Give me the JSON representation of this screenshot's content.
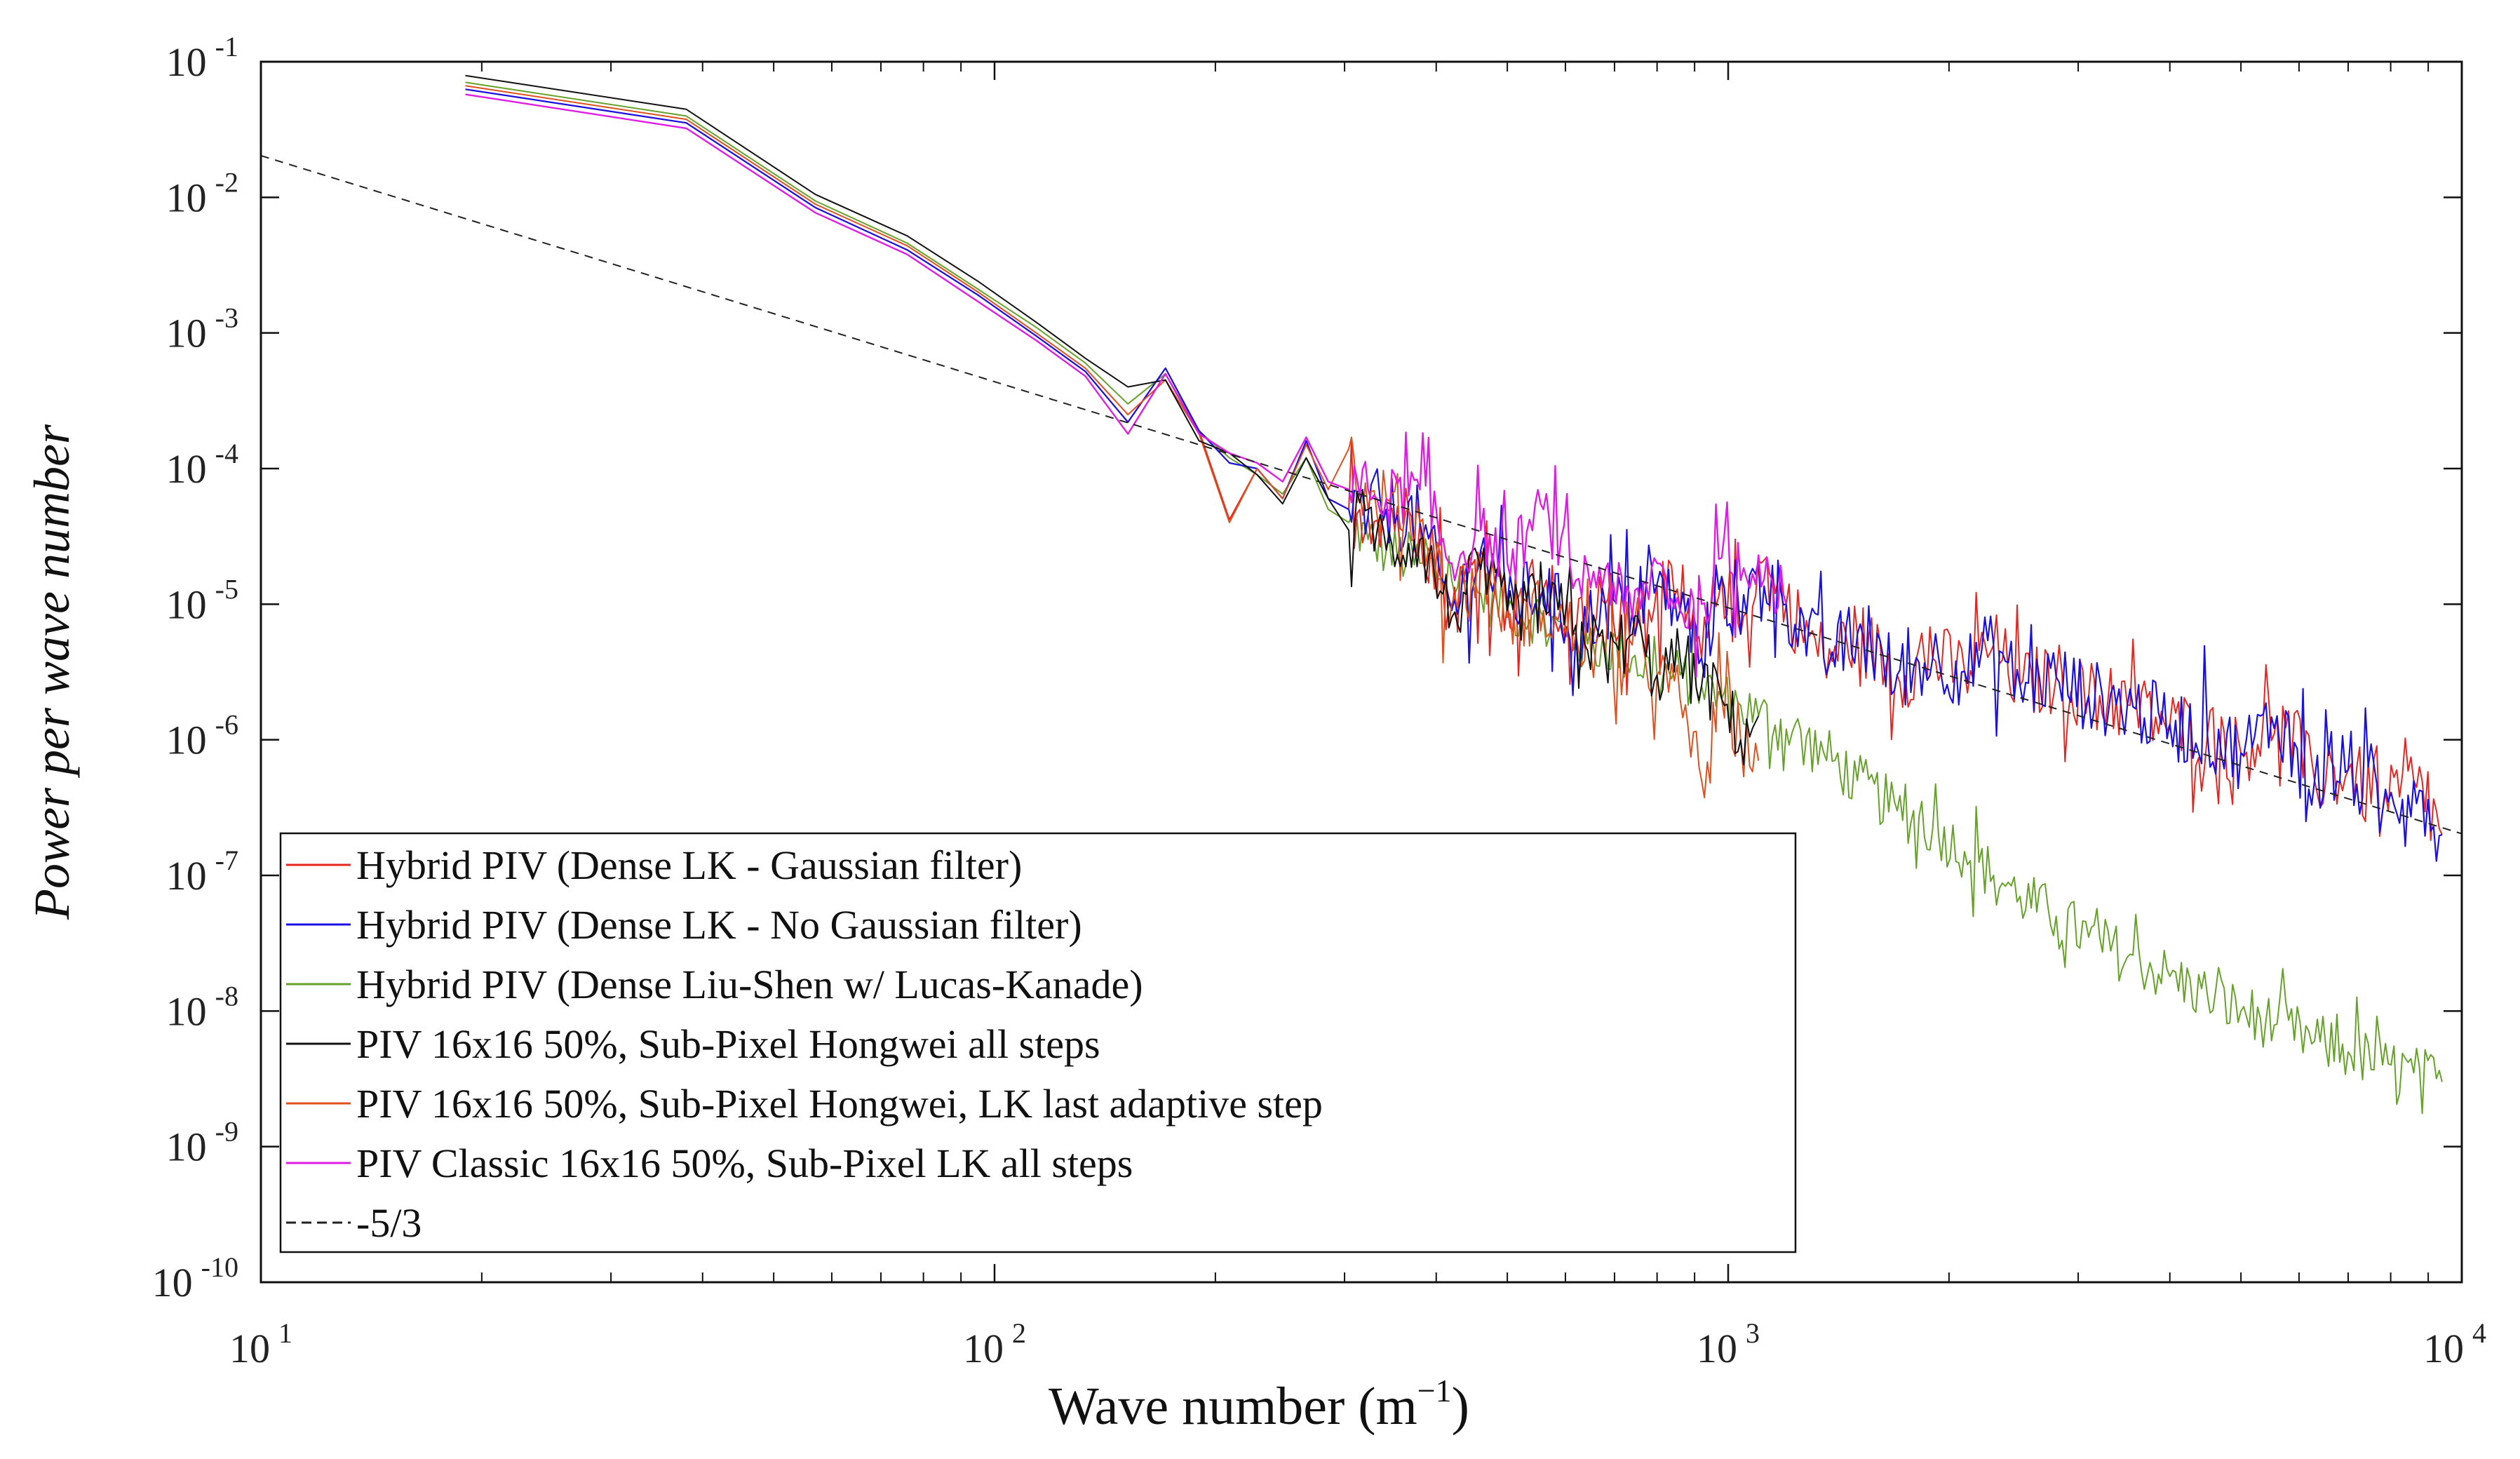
{
  "chart_data": {
    "type": "line",
    "scale": {
      "x": "log",
      "y": "log"
    },
    "xlim": [
      10,
      10000
    ],
    "ylim": [
      1e-10,
      0.1
    ],
    "xlabel": "Wave number (m",
    "xlabel_sup": "−1",
    "xlabel_end": ")",
    "ylabel": "Power per wave number",
    "x_ticks": [
      {
        "value": 10,
        "base": "10",
        "exp": "1"
      },
      {
        "value": 100,
        "base": "10",
        "exp": "2"
      },
      {
        "value": 1000,
        "base": "10",
        "exp": "3"
      },
      {
        "value": 10000,
        "base": "10",
        "exp": "4"
      }
    ],
    "y_ticks": [
      {
        "value": 0.1,
        "base": "10",
        "exp": "-1"
      },
      {
        "value": 0.01,
        "base": "10",
        "exp": "-2"
      },
      {
        "value": 0.001,
        "base": "10",
        "exp": "-3"
      },
      {
        "value": 0.0001,
        "base": "10",
        "exp": "-4"
      },
      {
        "value": 1e-05,
        "base": "10",
        "exp": "-5"
      },
      {
        "value": 1e-06,
        "base": "10",
        "exp": "-6"
      },
      {
        "value": 1e-07,
        "base": "10",
        "exp": "-7"
      },
      {
        "value": 1e-08,
        "base": "10",
        "exp": "-8"
      },
      {
        "value": 1e-09,
        "base": "10",
        "exp": "-9"
      },
      {
        "value": 1e-10,
        "base": "10",
        "exp": "-10"
      }
    ],
    "legend_position": "bottom-left",
    "series": [
      {
        "name": "Hybrid PIV (Dense LK - Gaussian filter)",
        "color": "#e8241e",
        "dash": false,
        "width": 2,
        "x": [
          19,
          38,
          57,
          76,
          95,
          114,
          133,
          152,
          171,
          190,
          209,
          228,
          247,
          266,
          285,
          304,
          323,
          342,
          380,
          420,
          460,
          500,
          560,
          620,
          680,
          740,
          800,
          860,
          920,
          980,
          1040,
          1100,
          1200,
          1350,
          1500,
          1700,
          1900,
          2100,
          2300,
          2500,
          2800,
          3100,
          3500,
          4000,
          4500,
          5000,
          5600,
          6300,
          7000,
          7800,
          8600,
          9400
        ],
        "y": [
          0.0626,
          0.0354,
          0.0084,
          0.0041,
          0.0019,
          0.00095,
          0.00052,
          0.00022,
          0.00055,
          0.00019,
          4.2e-05,
          0.0001,
          6e-05,
          0.00016,
          6e-05,
          5e-05,
          4.5e-05,
          5e-05,
          4e-05,
          9e-06,
          2.5e-05,
          1e-05,
          1.3e-05,
          6e-06,
          1e-05,
          9e-06,
          1.4e-05,
          9e-06,
          4e-06,
          1.6e-05,
          6e-06,
          2.1e-05,
          1e-05,
          4e-06,
          6e-06,
          3e-06,
          4e-06,
          3.2e-06,
          5e-06,
          2.5e-06,
          2.9e-06,
          2.1e-06,
          1.8e-06,
          1.3e-06,
          1.1e-06,
          8e-07,
          1.5e-06,
          5e-07,
          6e-07,
          3e-07,
          5e-07,
          2e-07
        ]
      },
      {
        "name": "Hybrid PIV (Dense LK - No Gaussian filter)",
        "color": "#1a10e6",
        "dash": false,
        "width": 2.2,
        "x": [
          19,
          38,
          57,
          76,
          95,
          114,
          133,
          152,
          171,
          190,
          209,
          228,
          247,
          266,
          285,
          304,
          323,
          342,
          380,
          420,
          460,
          500,
          560,
          620,
          680,
          740,
          800,
          860,
          920,
          980,
          1040,
          1100,
          1200,
          1350,
          1500,
          1700,
          1900,
          2100,
          2300,
          2500,
          2800,
          3100,
          3500,
          4000,
          4500,
          5000,
          5600,
          6300,
          7000,
          7800,
          8600,
          9400
        ],
        "y": [
          0.0626,
          0.0354,
          0.0084,
          0.0041,
          0.0019,
          0.00095,
          0.00052,
          0.00022,
          0.00055,
          0.00019,
          0.00011,
          0.0001,
          6e-05,
          0.00016,
          6e-05,
          5e-05,
          4.5e-05,
          5e-05,
          4e-05,
          9e-06,
          2.5e-05,
          1e-05,
          1.3e-05,
          6e-06,
          1e-05,
          9e-06,
          1.4e-05,
          9e-06,
          4e-06,
          1.6e-05,
          6e-06,
          2.1e-05,
          1e-05,
          4e-06,
          6e-06,
          3e-06,
          4e-06,
          3.2e-06,
          5e-06,
          2.5e-06,
          2.9e-06,
          2.1e-06,
          1.8e-06,
          1.3e-06,
          1.1e-06,
          8e-07,
          1.5e-06,
          5e-07,
          6e-07,
          3e-07,
          5e-07,
          2e-07
        ]
      },
      {
        "name": "Hybrid PIV (Dense Liu-Shen w/ Lucas-Kanade)",
        "color": "#66a22a",
        "dash": false,
        "width": 2,
        "x": [
          19,
          38,
          57,
          76,
          95,
          114,
          133,
          152,
          171,
          190,
          209,
          228,
          247,
          266,
          285,
          304,
          323,
          342,
          380,
          420,
          460,
          500,
          560,
          620,
          680,
          740,
          800,
          860,
          920,
          980,
          1040,
          1100,
          1200,
          1350,
          1500,
          1700,
          1900,
          2100,
          2300,
          2500,
          2800,
          3100,
          3500,
          4000,
          4500,
          5000,
          5600,
          6300,
          7000,
          7800,
          8600,
          9400
        ],
        "y": [
          0.0705,
          0.0398,
          0.0094,
          0.0046,
          0.0021,
          0.0011,
          0.0006,
          0.0003,
          0.0005,
          0.00019,
          0.00012,
          9e-05,
          6.5e-05,
          0.00012,
          5e-05,
          4e-05,
          3e-05,
          2.5e-05,
          2e-05,
          1.5e-05,
          1.2e-05,
          9e-06,
          8e-06,
          5e-06,
          5e-06,
          4e-06,
          3e-06,
          3e-06,
          2.5e-06,
          2e-06,
          1.8e-06,
          1.5e-06,
          1.2e-06,
          8e-07,
          5e-07,
          3e-07,
          2.2e-07,
          1.5e-07,
          1e-07,
          7e-08,
          5e-08,
          3.5e-08,
          2.5e-08,
          1.8e-08,
          1.3e-08,
          1e-08,
          8e-09,
          6e-09,
          5e-09,
          4e-09,
          3.5e-09,
          3e-09
        ]
      },
      {
        "name": "PIV 16x16 50%, Sub-Pixel Hongwei all steps",
        "color": "#111111",
        "dash": false,
        "width": 2,
        "x": [
          19,
          38,
          57,
          76,
          95,
          114,
          133,
          152,
          171,
          190,
          209,
          228,
          247,
          266,
          285,
          304,
          323,
          342,
          380,
          420,
          460,
          500,
          560,
          620,
          680,
          740,
          800,
          860,
          920,
          980,
          1040,
          1100
        ],
        "y": [
          0.0791,
          0.0446,
          0.0105,
          0.0052,
          0.0024,
          0.0012,
          0.00065,
          0.0004,
          0.00045,
          0.00016,
          0.00013,
          9e-05,
          5.5e-05,
          0.00012,
          6e-05,
          3.5e-05,
          5e-05,
          2.5e-05,
          3e-05,
          8e-06,
          1.8e-05,
          9e-06,
          1e-05,
          7e-06,
          4e-06,
          6e-06,
          3e-06,
          4e-06,
          2.5e-06,
          2e-06,
          1e-06,
          1.5e-06
        ]
      },
      {
        "name": "PIV 16x16 50%, Sub-Pixel Hongwei, LK last adaptive step",
        "color": "#e0501c",
        "dash": false,
        "width": 2,
        "x": [
          19,
          38,
          57,
          76,
          95,
          114,
          133,
          152,
          171,
          190,
          209,
          228,
          247,
          266,
          285,
          304,
          323,
          342,
          380,
          420,
          460,
          500,
          560,
          620,
          680,
          740,
          800,
          860,
          920,
          980,
          1040,
          1100
        ],
        "y": [
          0.0665,
          0.0376,
          0.0089,
          0.0044,
          0.002,
          0.001,
          0.00055,
          0.00025,
          0.00045,
          0.00018,
          4e-05,
          0.0001,
          6e-05,
          0.00015,
          7e-05,
          0.00014,
          5e-05,
          6e-05,
          4e-05,
          1e-05,
          2e-05,
          8e-06,
          9e-06,
          6e-06,
          4e-06,
          5e-06,
          3e-06,
          2e-06,
          5e-07,
          2e-06,
          1e-06,
          7e-07
        ]
      },
      {
        "name": "PIV Classic 16x16 50%, Sub-Pixel LK all steps",
        "color": "#e11be6",
        "dash": false,
        "width": 2.4,
        "x": [
          19,
          38,
          57,
          76,
          95,
          114,
          133,
          152,
          171,
          190,
          209,
          228,
          247,
          266,
          285,
          304,
          323,
          342,
          380,
          420,
          460,
          500,
          560,
          620,
          680,
          740,
          800,
          860,
          920,
          980,
          1040,
          1100,
          1200
        ],
        "y": [
          0.0574,
          0.0323,
          0.0077,
          0.0038,
          0.0017,
          0.00088,
          0.00048,
          0.00018,
          0.0005,
          0.00018,
          0.00013,
          0.00011,
          8e-05,
          0.00017,
          8e-05,
          7e-05,
          7e-05,
          6e-05,
          7e-05,
          2e-05,
          3.5e-05,
          2e-05,
          5e-05,
          1.5e-05,
          1.8e-05,
          8e-06,
          2e-05,
          9e-06,
          1e-05,
          2.2e-05,
          1.5e-05,
          2.3e-05,
          1e-05
        ]
      },
      {
        "name": "-5/3",
        "color": "#222222",
        "dash": true,
        "width": 2,
        "x": [
          10,
          10000
        ],
        "y": [
          0.0203,
          2.03e-07
        ]
      }
    ]
  }
}
